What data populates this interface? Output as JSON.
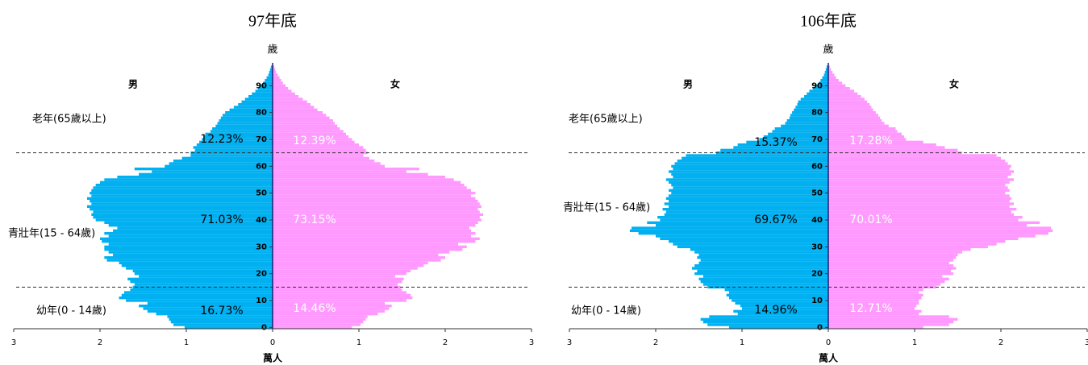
{
  "chart_data": [
    {
      "type": "pyramid",
      "title": "97年底",
      "y_label": "歲",
      "x_label": "萬人",
      "y": [
        0,
        1,
        2,
        3,
        4,
        5,
        6,
        7,
        8,
        9,
        10,
        11,
        12,
        13,
        14,
        15,
        16,
        17,
        18,
        19,
        20,
        21,
        22,
        23,
        24,
        25,
        26,
        27,
        28,
        29,
        30,
        31,
        32,
        33,
        34,
        35,
        36,
        37,
        38,
        39,
        40,
        41,
        42,
        43,
        44,
        45,
        46,
        47,
        48,
        49,
        50,
        51,
        52,
        53,
        54,
        55,
        56,
        57,
        58,
        59,
        60,
        61,
        62,
        63,
        64,
        65,
        66,
        67,
        68,
        69,
        70,
        71,
        72,
        73,
        74,
        75,
        76,
        77,
        78,
        79,
        80,
        81,
        82,
        83,
        84,
        85,
        86,
        87,
        88,
        89,
        90,
        91,
        92,
        93,
        94,
        95,
        96,
        97
      ],
      "series": [
        {
          "name": "男",
          "color": "#00b0f0",
          "side": "left",
          "values": [
            1.02,
            1.15,
            1.18,
            1.2,
            1.22,
            1.35,
            1.45,
            1.5,
            1.55,
            1.45,
            1.7,
            1.78,
            1.75,
            1.72,
            1.65,
            1.62,
            1.6,
            1.65,
            1.68,
            1.55,
            1.6,
            1.62,
            1.7,
            1.75,
            1.78,
            1.92,
            1.95,
            1.85,
            1.9,
            1.95,
            1.95,
            1.9,
            1.98,
            2.0,
            1.9,
            1.95,
            1.85,
            1.8,
            1.9,
            1.95,
            2.05,
            2.08,
            2.1,
            2.08,
            2.12,
            2.15,
            2.1,
            2.12,
            2.15,
            2.1,
            2.12,
            2.1,
            2.08,
            2.05,
            2.0,
            1.95,
            1.8,
            1.55,
            1.4,
            1.6,
            1.25,
            1.2,
            1.15,
            1.05,
            0.95,
            0.95,
            0.9,
            0.92,
            0.88,
            0.85,
            0.82,
            0.8,
            0.78,
            0.72,
            0.7,
            0.66,
            0.64,
            0.62,
            0.6,
            0.58,
            0.55,
            0.5,
            0.45,
            0.4,
            0.36,
            0.32,
            0.28,
            0.24,
            0.2,
            0.17,
            0.14,
            0.11,
            0.09,
            0.07,
            0.05,
            0.04,
            0.03,
            0.02
          ]
        },
        {
          "name": "女",
          "color": "#ff99ff",
          "side": "right",
          "values": [
            0.92,
            1.02,
            1.05,
            1.08,
            1.1,
            1.22,
            1.3,
            1.35,
            1.38,
            1.3,
            1.55,
            1.62,
            1.6,
            1.55,
            1.5,
            1.48,
            1.45,
            1.5,
            1.52,
            1.42,
            1.55,
            1.6,
            1.68,
            1.75,
            1.8,
            1.95,
            2.0,
            1.92,
            2.05,
            2.2,
            2.25,
            2.15,
            2.35,
            2.4,
            2.3,
            2.35,
            2.3,
            2.28,
            2.35,
            2.38,
            2.42,
            2.4,
            2.44,
            2.4,
            2.38,
            2.42,
            2.4,
            2.38,
            2.35,
            2.3,
            2.35,
            2.3,
            2.25,
            2.22,
            2.18,
            2.1,
            2.0,
            1.8,
            1.55,
            1.7,
            1.3,
            1.25,
            1.18,
            1.12,
            1.05,
            1.1,
            1.08,
            1.05,
            1.0,
            0.95,
            0.92,
            0.88,
            0.85,
            0.82,
            0.78,
            0.75,
            0.72,
            0.7,
            0.66,
            0.62,
            0.58,
            0.52,
            0.48,
            0.44,
            0.4,
            0.35,
            0.3,
            0.26,
            0.22,
            0.18,
            0.15,
            0.12,
            0.1,
            0.08,
            0.06,
            0.04,
            0.03,
            0.02
          ]
        }
      ],
      "ylim": [
        -0.5,
        98.5
      ],
      "yticks": [
        0,
        10,
        20,
        30,
        40,
        50,
        60,
        70,
        80,
        90
      ],
      "xlim": [
        -3,
        3
      ],
      "xticks": [
        {
          "value": -3,
          "label": "3"
        },
        {
          "value": -2,
          "label": "2"
        },
        {
          "value": -1,
          "label": "1"
        },
        0,
        1,
        2,
        3
      ],
      "reference_lines": [
        15,
        65
      ],
      "groups": [
        {
          "label": "老年(65歲以上)",
          "values": [
            12.23,
            12.39
          ],
          "value_labels": [
            "12.23%",
            "12.39%"
          ]
        },
        {
          "label": "青壯年(15 - 64歲)",
          "values": [
            71.03,
            73.15
          ],
          "value_labels": [
            "71.03%",
            "73.15%"
          ]
        },
        {
          "label": "幼年(0 - 14歲)",
          "values": [
            16.73,
            14.46
          ],
          "value_labels": [
            "16.73%",
            "14.46%"
          ]
        }
      ]
    },
    {
      "type": "pyramid",
      "title": "106年底",
      "y_label": "歲",
      "x_label": "萬人",
      "y": [
        0,
        1,
        2,
        3,
        4,
        5,
        6,
        7,
        8,
        9,
        10,
        11,
        12,
        13,
        14,
        15,
        16,
        17,
        18,
        19,
        20,
        21,
        22,
        23,
        24,
        25,
        26,
        27,
        28,
        29,
        30,
        31,
        32,
        33,
        34,
        35,
        36,
        37,
        38,
        39,
        40,
        41,
        42,
        43,
        44,
        45,
        46,
        47,
        48,
        49,
        50,
        51,
        52,
        53,
        54,
        55,
        56,
        57,
        58,
        59,
        60,
        61,
        62,
        63,
        64,
        65,
        66,
        67,
        68,
        69,
        70,
        71,
        72,
        73,
        74,
        75,
        76,
        77,
        78,
        79,
        80,
        81,
        82,
        83,
        84,
        85,
        86,
        87,
        88,
        89,
        90,
        91,
        92,
        93,
        94,
        95,
        96,
        97
      ],
      "series": [
        {
          "name": "男",
          "color": "#00b0f0",
          "side": "left",
          "values": [
            1.15,
            1.4,
            1.45,
            1.48,
            1.38,
            1.05,
            1.1,
            1.0,
            1.02,
            1.08,
            1.12,
            1.15,
            1.18,
            1.15,
            1.2,
            1.4,
            1.45,
            1.48,
            1.5,
            1.45,
            1.55,
            1.52,
            1.58,
            1.55,
            1.5,
            1.48,
            1.52,
            1.5,
            1.55,
            1.6,
            1.75,
            1.8,
            1.85,
            1.95,
            2.0,
            2.2,
            2.3,
            2.28,
            2.0,
            2.1,
            1.95,
            1.98,
            1.9,
            1.88,
            1.92,
            1.85,
            1.9,
            1.85,
            1.88,
            1.85,
            1.82,
            1.85,
            1.8,
            1.82,
            1.85,
            1.88,
            1.8,
            1.82,
            1.85,
            1.8,
            1.82,
            1.78,
            1.75,
            1.7,
            1.65,
            1.3,
            1.25,
            1.1,
            1.05,
            0.95,
            0.8,
            0.75,
            0.7,
            0.65,
            0.62,
            0.55,
            0.5,
            0.48,
            0.45,
            0.44,
            0.42,
            0.4,
            0.38,
            0.36,
            0.35,
            0.32,
            0.28,
            0.25,
            0.22,
            0.18,
            0.14,
            0.11,
            0.09,
            0.07,
            0.05,
            0.04,
            0.03,
            0.02
          ]
        },
        {
          "name": "女",
          "color": "#ff99ff",
          "side": "right",
          "values": [
            1.1,
            1.4,
            1.45,
            1.5,
            1.4,
            1.05,
            1.08,
            1.0,
            1.02,
            1.05,
            1.05,
            1.08,
            1.1,
            1.05,
            1.1,
            1.25,
            1.3,
            1.35,
            1.4,
            1.32,
            1.45,
            1.42,
            1.48,
            1.45,
            1.4,
            1.45,
            1.48,
            1.5,
            1.55,
            1.65,
            1.85,
            1.95,
            2.05,
            2.2,
            2.4,
            2.55,
            2.6,
            2.58,
            2.3,
            2.45,
            2.2,
            2.25,
            2.15,
            2.12,
            2.18,
            2.1,
            2.15,
            2.1,
            2.12,
            2.1,
            2.05,
            2.1,
            2.08,
            2.05,
            2.1,
            2.15,
            2.08,
            2.12,
            2.15,
            2.1,
            2.12,
            2.08,
            2.05,
            2.0,
            1.95,
            1.55,
            1.5,
            1.35,
            1.25,
            1.1,
            0.9,
            0.88,
            0.85,
            0.8,
            0.78,
            0.7,
            0.65,
            0.62,
            0.6,
            0.58,
            0.55,
            0.52,
            0.5,
            0.48,
            0.45,
            0.42,
            0.38,
            0.34,
            0.3,
            0.25,
            0.2,
            0.16,
            0.12,
            0.09,
            0.07,
            0.05,
            0.03,
            0.02
          ]
        }
      ],
      "ylim": [
        -0.5,
        98.5
      ],
      "yticks": [
        0,
        10,
        20,
        30,
        40,
        50,
        60,
        70,
        80,
        90
      ],
      "xlim": [
        -3,
        3
      ],
      "xticks": [
        {
          "value": -3,
          "label": "3"
        },
        {
          "value": -2,
          "label": "2"
        },
        {
          "value": -1,
          "label": "1"
        },
        0,
        1,
        2,
        3
      ],
      "reference_lines": [
        15,
        65
      ],
      "groups": [
        {
          "label": "老年(65歲以上)",
          "values": [
            15.37,
            17.28
          ],
          "value_labels": [
            "15.37%",
            "17.28%"
          ]
        },
        {
          "label": "青壯年(15 - 64歲)",
          "values": [
            69.67,
            70.01
          ],
          "value_labels": [
            "69.67%",
            "70.01%"
          ]
        },
        {
          "label": "幼年(0 - 14歲)",
          "values": [
            14.96,
            12.71
          ],
          "value_labels": [
            "14.96%",
            "12.71%"
          ]
        }
      ]
    }
  ]
}
